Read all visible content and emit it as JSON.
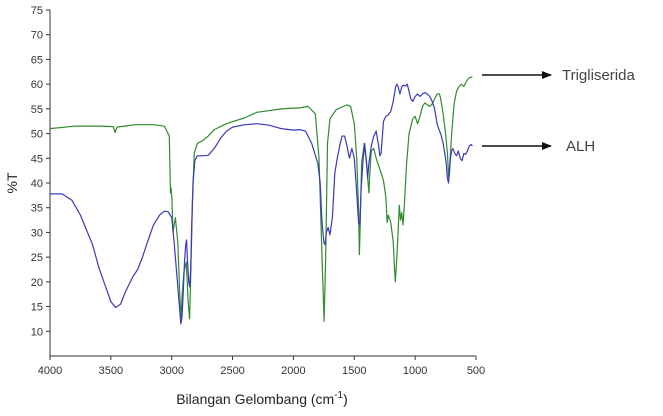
{
  "chart_data": {
    "type": "line",
    "xlabel": "Bilangan Gelombang (cm",
    "xlabel_sup": "-1",
    "xlabel_tail": ")",
    "ylabel": "%T",
    "xlim": [
      4000,
      500
    ],
    "ylim": [
      5,
      75
    ],
    "x_ticks": [
      4000,
      3500,
      3000,
      2500,
      2000,
      1500,
      1000,
      500
    ],
    "y_ticks": [
      10,
      15,
      20,
      25,
      30,
      35,
      40,
      45,
      50,
      55,
      60,
      65,
      70,
      75
    ],
    "grid": false,
    "series": [
      {
        "name": "Trigliserida",
        "color": "#2e8b2e",
        "points": [
          [
            4000,
            51.0
          ],
          [
            3800,
            51.5
          ],
          [
            3600,
            51.5
          ],
          [
            3480,
            51.4
          ],
          [
            3465,
            50.2
          ],
          [
            3450,
            51.3
          ],
          [
            3300,
            51.8
          ],
          [
            3150,
            51.8
          ],
          [
            3060,
            51.5
          ],
          [
            3020,
            49.5
          ],
          [
            3010,
            38.0
          ],
          [
            3005,
            39.0
          ],
          [
            2998,
            36.5
          ],
          [
            2990,
            30.0
          ],
          [
            2970,
            33.0
          ],
          [
            2950,
            28.0
          ],
          [
            2935,
            18.0
          ],
          [
            2925,
            12.5
          ],
          [
            2915,
            17.0
          ],
          [
            2900,
            22.0
          ],
          [
            2880,
            24.0
          ],
          [
            2865,
            16.0
          ],
          [
            2853,
            12.5
          ],
          [
            2845,
            20.0
          ],
          [
            2830,
            36.0
          ],
          [
            2815,
            46.0
          ],
          [
            2790,
            48.0
          ],
          [
            2750,
            48.5
          ],
          [
            2700,
            49.5
          ],
          [
            2650,
            50.8
          ],
          [
            2550,
            52.0
          ],
          [
            2400,
            53.2
          ],
          [
            2300,
            54.3
          ],
          [
            2100,
            55.0
          ],
          [
            1950,
            55.2
          ],
          [
            1880,
            55.5
          ],
          [
            1820,
            54.0
          ],
          [
            1790,
            45.0
          ],
          [
            1765,
            25.0
          ],
          [
            1748,
            12.0
          ],
          [
            1735,
            25.0
          ],
          [
            1720,
            48.0
          ],
          [
            1700,
            53.0
          ],
          [
            1650,
            54.8
          ],
          [
            1600,
            55.4
          ],
          [
            1560,
            55.8
          ],
          [
            1530,
            55.5
          ],
          [
            1500,
            52.0
          ],
          [
            1480,
            45.0
          ],
          [
            1465,
            35.0
          ],
          [
            1458,
            25.5
          ],
          [
            1450,
            33.0
          ],
          [
            1440,
            44.0
          ],
          [
            1418,
            48.0
          ],
          [
            1400,
            44.0
          ],
          [
            1380,
            38.0
          ],
          [
            1375,
            41.0
          ],
          [
            1360,
            46.5
          ],
          [
            1340,
            47.0
          ],
          [
            1320,
            45.0
          ],
          [
            1300,
            43.5
          ],
          [
            1280,
            42.0
          ],
          [
            1260,
            40.5
          ],
          [
            1240,
            37.0
          ],
          [
            1230,
            32.0
          ],
          [
            1220,
            33.5
          ],
          [
            1200,
            32.0
          ],
          [
            1180,
            28.0
          ],
          [
            1170,
            23.0
          ],
          [
            1163,
            20.0
          ],
          [
            1150,
            25.0
          ],
          [
            1130,
            35.5
          ],
          [
            1120,
            32.5
          ],
          [
            1110,
            34.0
          ],
          [
            1100,
            31.5
          ],
          [
            1090,
            35.0
          ],
          [
            1070,
            44.0
          ],
          [
            1050,
            50.0
          ],
          [
            1020,
            53.0
          ],
          [
            1000,
            53.5
          ],
          [
            980,
            52.0
          ],
          [
            960,
            53.5
          ],
          [
            940,
            55.5
          ],
          [
            920,
            56.2
          ],
          [
            900,
            55.8
          ],
          [
            880,
            55.5
          ],
          [
            860,
            56.0
          ],
          [
            840,
            57.0
          ],
          [
            820,
            58.0
          ],
          [
            800,
            58.0
          ],
          [
            790,
            57.0
          ],
          [
            770,
            54.0
          ],
          [
            750,
            50.0
          ],
          [
            735,
            46.0
          ],
          [
            724,
            41.0
          ],
          [
            715,
            44.0
          ],
          [
            700,
            50.0
          ],
          [
            680,
            56.0
          ],
          [
            660,
            58.5
          ],
          [
            640,
            59.5
          ],
          [
            620,
            60.0
          ],
          [
            600,
            59.5
          ],
          [
            580,
            60.5
          ],
          [
            560,
            61.2
          ],
          [
            530,
            61.5
          ]
        ]
      },
      {
        "name": "ALH",
        "color": "#3a3ab8",
        "points": [
          [
            4000,
            37.8
          ],
          [
            3900,
            37.8
          ],
          [
            3820,
            36.5
          ],
          [
            3750,
            33.5
          ],
          [
            3700,
            30.5
          ],
          [
            3650,
            27.5
          ],
          [
            3600,
            23.0
          ],
          [
            3550,
            19.5
          ],
          [
            3500,
            16.0
          ],
          [
            3460,
            14.8
          ],
          [
            3420,
            15.5
          ],
          [
            3380,
            18.0
          ],
          [
            3320,
            21.0
          ],
          [
            3280,
            22.5
          ],
          [
            3240,
            25.0
          ],
          [
            3200,
            28.0
          ],
          [
            3150,
            31.5
          ],
          [
            3100,
            33.5
          ],
          [
            3060,
            34.3
          ],
          [
            3030,
            34.2
          ],
          [
            3000,
            33.0
          ],
          [
            2980,
            28.0
          ],
          [
            2960,
            22.0
          ],
          [
            2940,
            16.0
          ],
          [
            2925,
            11.5
          ],
          [
            2915,
            13.0
          ],
          [
            2905,
            18.0
          ],
          [
            2895,
            24.0
          ],
          [
            2885,
            27.5
          ],
          [
            2878,
            28.5
          ],
          [
            2870,
            24.0
          ],
          [
            2860,
            20.0
          ],
          [
            2853,
            19.0
          ],
          [
            2845,
            22.0
          ],
          [
            2835,
            32.0
          ],
          [
            2825,
            40.0
          ],
          [
            2810,
            44.5
          ],
          [
            2790,
            45.5
          ],
          [
            2750,
            45.5
          ],
          [
            2700,
            45.6
          ],
          [
            2650,
            47.0
          ],
          [
            2600,
            49.0
          ],
          [
            2550,
            50.5
          ],
          [
            2500,
            51.3
          ],
          [
            2400,
            51.8
          ],
          [
            2300,
            52.0
          ],
          [
            2200,
            51.7
          ],
          [
            2100,
            51.0
          ],
          [
            2000,
            50.7
          ],
          [
            1950,
            50.8
          ],
          [
            1900,
            50.5
          ],
          [
            1850,
            48.0
          ],
          [
            1800,
            44.0
          ],
          [
            1780,
            40.0
          ],
          [
            1765,
            32.0
          ],
          [
            1750,
            28.0
          ],
          [
            1740,
            27.5
          ],
          [
            1730,
            30.0
          ],
          [
            1715,
            31.0
          ],
          [
            1700,
            29.5
          ],
          [
            1680,
            33.0
          ],
          [
            1660,
            42.0
          ],
          [
            1640,
            45.0
          ],
          [
            1620,
            47.5
          ],
          [
            1600,
            49.5
          ],
          [
            1580,
            49.5
          ],
          [
            1560,
            47.5
          ],
          [
            1540,
            45.0
          ],
          [
            1520,
            47.0
          ],
          [
            1500,
            45.0
          ],
          [
            1480,
            38.0
          ],
          [
            1465,
            32.0
          ],
          [
            1455,
            31.5
          ],
          [
            1445,
            38.0
          ],
          [
            1430,
            44.0
          ],
          [
            1415,
            48.0
          ],
          [
            1400,
            44.5
          ],
          [
            1390,
            41.0
          ],
          [
            1380,
            44.0
          ],
          [
            1360,
            47.5
          ],
          [
            1340,
            49.5
          ],
          [
            1320,
            50.5
          ],
          [
            1300,
            47.5
          ],
          [
            1290,
            45.5
          ],
          [
            1280,
            46.0
          ],
          [
            1260,
            52.5
          ],
          [
            1240,
            53.5
          ],
          [
            1220,
            53.8
          ],
          [
            1200,
            54.5
          ],
          [
            1180,
            56.5
          ],
          [
            1160,
            59.5
          ],
          [
            1150,
            60.0
          ],
          [
            1140,
            59.5
          ],
          [
            1125,
            58.0
          ],
          [
            1110,
            59.5
          ],
          [
            1095,
            59.8
          ],
          [
            1080,
            59.6
          ],
          [
            1065,
            60.0
          ],
          [
            1050,
            58.5
          ],
          [
            1035,
            57.0
          ],
          [
            1020,
            56.5
          ],
          [
            1000,
            57.5
          ],
          [
            980,
            58.0
          ],
          [
            960,
            57.5
          ],
          [
            940,
            58.0
          ],
          [
            920,
            58.3
          ],
          [
            900,
            58.0
          ],
          [
            880,
            57.5
          ],
          [
            860,
            56.5
          ],
          [
            840,
            55.0
          ],
          [
            820,
            52.0
          ],
          [
            800,
            50.5
          ],
          [
            790,
            50.0
          ],
          [
            780,
            49.0
          ],
          [
            770,
            48.0
          ],
          [
            760,
            46.5
          ],
          [
            745,
            44.0
          ],
          [
            735,
            41.0
          ],
          [
            726,
            40.0
          ],
          [
            718,
            42.0
          ],
          [
            710,
            45.0
          ],
          [
            700,
            46.5
          ],
          [
            690,
            47.0
          ],
          [
            675,
            46.0
          ],
          [
            660,
            45.5
          ],
          [
            645,
            46.5
          ],
          [
            630,
            45.0
          ],
          [
            615,
            44.5
          ],
          [
            600,
            46.0
          ],
          [
            585,
            45.8
          ],
          [
            570,
            46.5
          ],
          [
            555,
            47.5
          ],
          [
            540,
            47.8
          ],
          [
            530,
            47.5
          ]
        ]
      }
    ]
  }
}
